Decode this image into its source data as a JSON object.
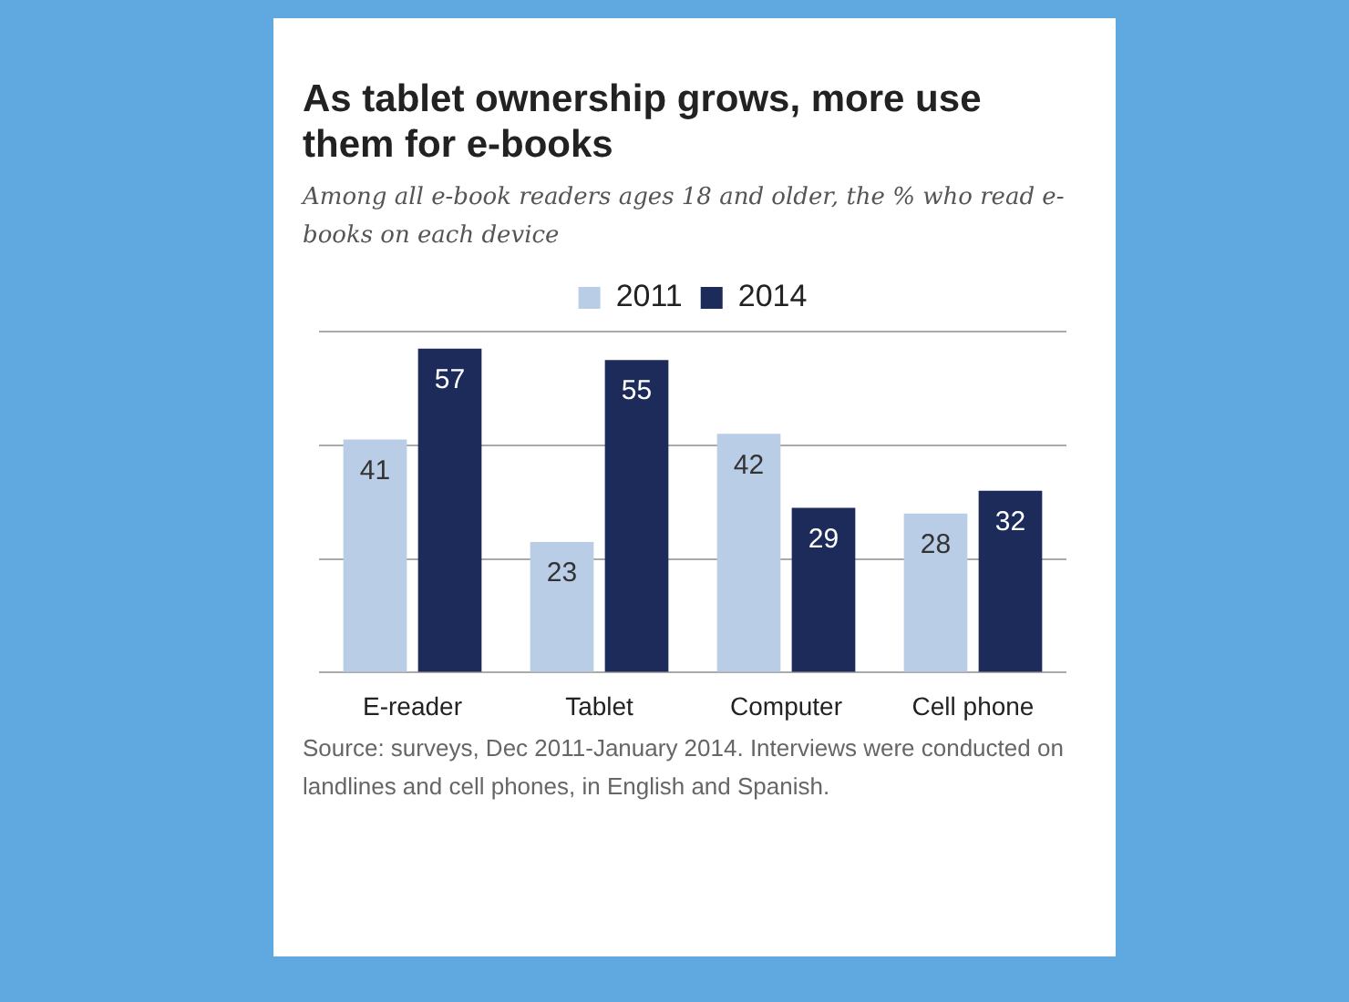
{
  "chart_data": {
    "type": "bar",
    "title": "As tablet ownership grows, more use them for e-books",
    "subtitle": "Among all e-book readers ages 18 and older, the % who read e-books on each device",
    "categories": [
      "E-reader",
      "Tablet",
      "Computer",
      "Cell phone"
    ],
    "series": [
      {
        "name": "2011",
        "color": "#b9cde6",
        "values": [
          41,
          23,
          42,
          28
        ]
      },
      {
        "name": "2014",
        "color": "#1c2b5a",
        "values": [
          57,
          55,
          29,
          32
        ]
      }
    ],
    "ylim": [
      0,
      60
    ],
    "yticks": [
      {
        "value": 0,
        "label": null
      },
      {
        "value": 20,
        "label": null
      },
      {
        "value": 40,
        "label": null
      },
      {
        "value": 60,
        "label": null
      }
    ],
    "grid": "y",
    "tick_labels": "x",
    "legend": "top",
    "data_labels": true,
    "annotations": [
      "Source: surveys, Dec 2011-January 2014. Interviews were conducted on landlines and cell phones, in English and Spanish."
    ]
  }
}
